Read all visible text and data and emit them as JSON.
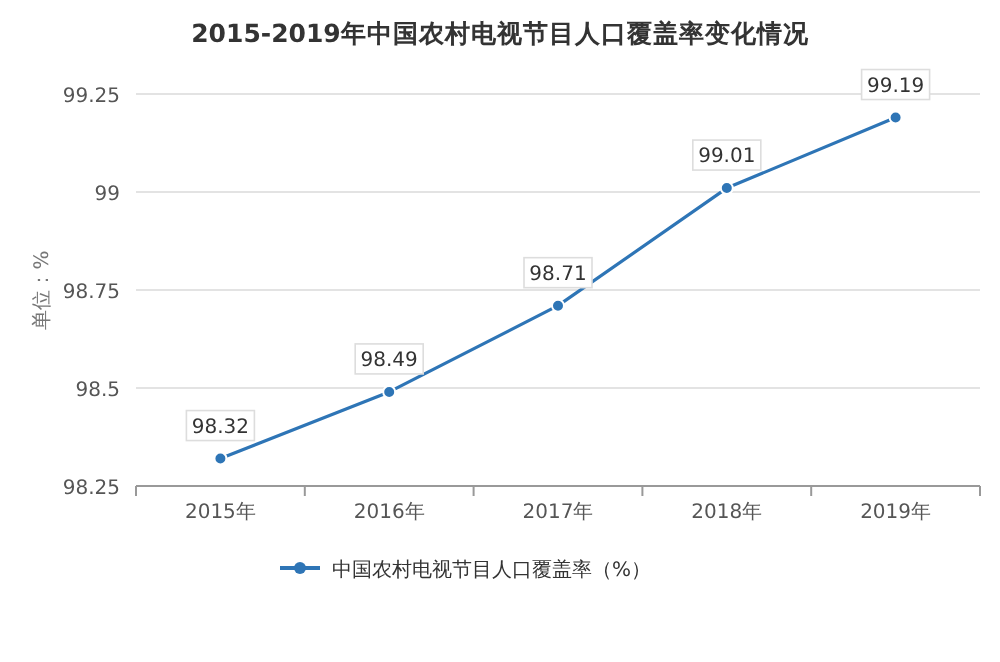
{
  "chart_data": {
    "type": "line",
    "title": "2015-2019年中国农村电视节目人口覆盖率变化情况",
    "ylabel": "单位：%",
    "categories": [
      "2015年",
      "2016年",
      "2017年",
      "2018年",
      "2019年"
    ],
    "series": [
      {
        "name": "中国农村电视节目人口覆盖率（%）",
        "color": "#2e75b6",
        "values": [
          98.32,
          98.49,
          98.71,
          99.01,
          99.19
        ]
      }
    ],
    "ylim": [
      98.25,
      99.25
    ],
    "yticks": [
      98.25,
      98.5,
      98.75,
      99,
      99.25
    ],
    "grid": "y",
    "legend": "bottom",
    "marker": "circle",
    "data_labels": true
  }
}
